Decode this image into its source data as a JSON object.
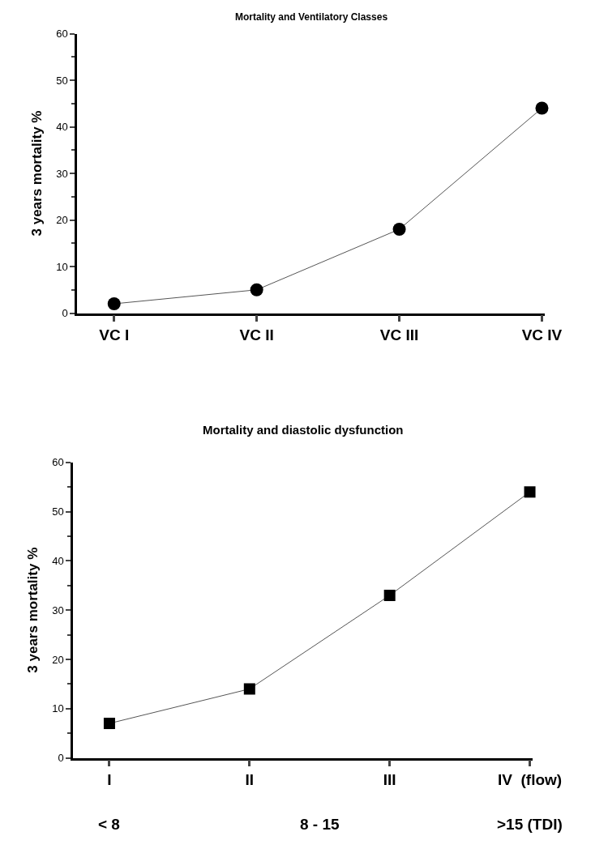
{
  "chart_data": [
    {
      "type": "line",
      "title": "Mortality and Ventilatory Classes",
      "ylabel": "3 years mortality %",
      "categories": [
        "VC I",
        "VC II",
        "VC III",
        "VC IV"
      ],
      "series": [
        {
          "color": "#000000",
          "values": [
            2,
            5,
            18,
            44
          ]
        }
      ],
      "ylim": [
        0,
        60
      ],
      "yticks": [
        0,
        10,
        20,
        30,
        40,
        50,
        60
      ],
      "marker": "circle",
      "line_style": "solid"
    },
    {
      "type": "line",
      "title": "Mortality and diastolic dysfunction",
      "ylabel": "3 years mortality %",
      "categories": [
        "I",
        "II",
        "III",
        "IV  (flow)"
      ],
      "series": [
        {
          "color": "#000000",
          "values": [
            7,
            14,
            33,
            54
          ]
        }
      ],
      "ylim": [
        0,
        60
      ],
      "yticks": [
        0,
        10,
        20,
        30,
        40,
        50,
        60
      ],
      "marker": "square",
      "line_style": "solid",
      "annotations": [
        "< 8",
        "8 - 15",
        ">15 (TDI)"
      ]
    }
  ]
}
